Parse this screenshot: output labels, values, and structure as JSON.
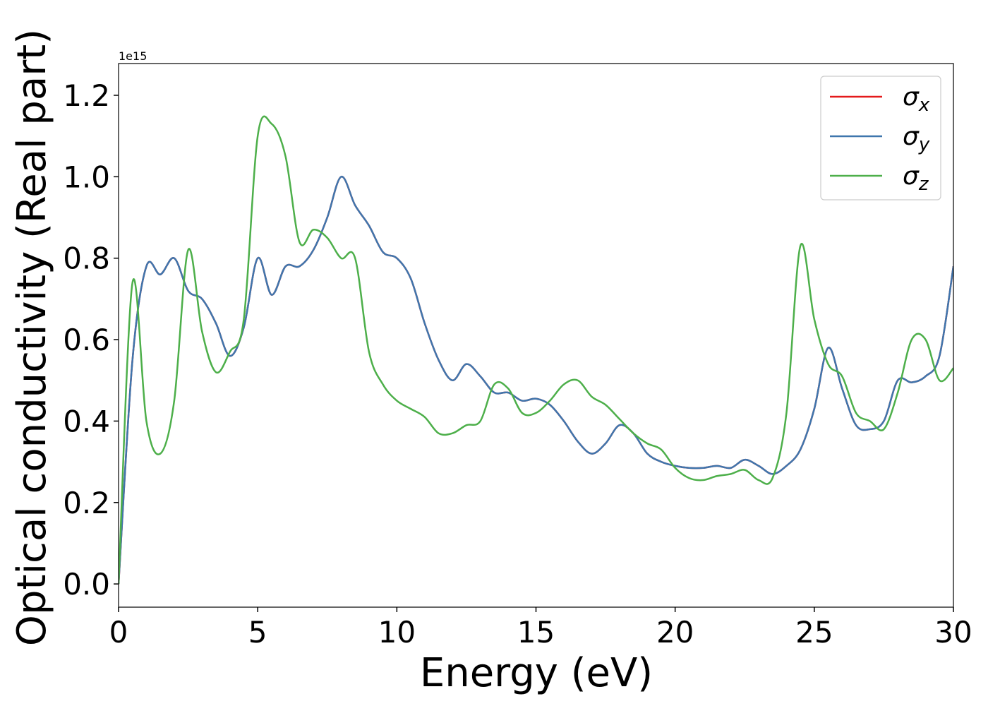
{
  "chart_data": {
    "type": "line",
    "xlabel": "Energy (eV)",
    "ylabel": "Optical conductivity (Real part)",
    "y_offset_label": "1e15",
    "x": [
      0,
      0.5,
      1,
      1.5,
      2,
      2.5,
      3,
      3.5,
      4,
      4.5,
      5,
      5.5,
      6,
      6.5,
      7,
      7.5,
      8,
      8.5,
      9,
      9.5,
      10,
      10.5,
      11,
      11.5,
      12,
      12.5,
      13,
      13.5,
      14,
      14.5,
      15,
      15.5,
      16,
      16.5,
      17,
      17.5,
      18,
      18.5,
      19,
      19.5,
      20,
      20.5,
      21,
      21.5,
      22,
      22.5,
      23,
      23.5,
      24,
      24.5,
      25,
      25.5,
      26,
      26.5,
      27,
      27.5,
      28,
      28.5,
      29,
      29.5,
      30
    ],
    "series": [
      {
        "name": "σx",
        "color": "#e41a1c",
        "values": [
          0,
          0.55,
          0.78,
          0.76,
          0.8,
          0.72,
          0.7,
          0.64,
          0.56,
          0.63,
          0.8,
          0.71,
          0.78,
          0.78,
          0.82,
          0.9,
          1.0,
          0.93,
          0.88,
          0.815,
          0.8,
          0.75,
          0.64,
          0.55,
          0.5,
          0.54,
          0.51,
          0.47,
          0.47,
          0.45,
          0.455,
          0.44,
          0.4,
          0.35,
          0.32,
          0.345,
          0.39,
          0.37,
          0.32,
          0.3,
          0.29,
          0.285,
          0.285,
          0.29,
          0.285,
          0.305,
          0.29,
          0.27,
          0.29,
          0.33,
          0.43,
          0.58,
          0.48,
          0.39,
          0.38,
          0.4,
          0.5,
          0.495,
          0.51,
          0.56,
          0.78
        ]
      },
      {
        "name": "σy",
        "color": "#3f76ad",
        "values": [
          0,
          0.55,
          0.78,
          0.76,
          0.8,
          0.72,
          0.7,
          0.64,
          0.56,
          0.63,
          0.8,
          0.71,
          0.78,
          0.78,
          0.82,
          0.9,
          1.0,
          0.93,
          0.88,
          0.815,
          0.8,
          0.75,
          0.64,
          0.55,
          0.5,
          0.54,
          0.51,
          0.47,
          0.47,
          0.45,
          0.455,
          0.44,
          0.4,
          0.35,
          0.32,
          0.345,
          0.39,
          0.37,
          0.32,
          0.3,
          0.29,
          0.285,
          0.285,
          0.29,
          0.285,
          0.305,
          0.29,
          0.27,
          0.29,
          0.33,
          0.43,
          0.58,
          0.48,
          0.39,
          0.38,
          0.4,
          0.5,
          0.495,
          0.51,
          0.56,
          0.78
        ]
      },
      {
        "name": "σz",
        "color": "#4daf4a",
        "values": [
          0,
          0.74,
          0.4,
          0.32,
          0.45,
          0.82,
          0.62,
          0.52,
          0.57,
          0.65,
          1.1,
          1.13,
          1.05,
          0.84,
          0.87,
          0.85,
          0.8,
          0.8,
          0.57,
          0.49,
          0.45,
          0.43,
          0.41,
          0.37,
          0.37,
          0.39,
          0.4,
          0.49,
          0.48,
          0.42,
          0.42,
          0.45,
          0.49,
          0.5,
          0.46,
          0.44,
          0.405,
          0.37,
          0.345,
          0.33,
          0.285,
          0.26,
          0.255,
          0.265,
          0.27,
          0.28,
          0.255,
          0.26,
          0.42,
          0.83,
          0.65,
          0.54,
          0.51,
          0.42,
          0.4,
          0.38,
          0.47,
          0.6,
          0.6,
          0.5,
          0.53
        ]
      }
    ],
    "xlim": [
      0,
      30
    ],
    "xticks": [
      0,
      5,
      10,
      15,
      20,
      25,
      30
    ],
    "ylim": [
      -0.057,
      1.278
    ],
    "yticks": [
      {
        "value": 0,
        "label": "0.0"
      },
      0.2,
      0.4,
      0.6,
      0.8,
      {
        "value": 1,
        "label": "1.0"
      },
      1.2
    ],
    "legend": "upper right",
    "grid": false
  }
}
